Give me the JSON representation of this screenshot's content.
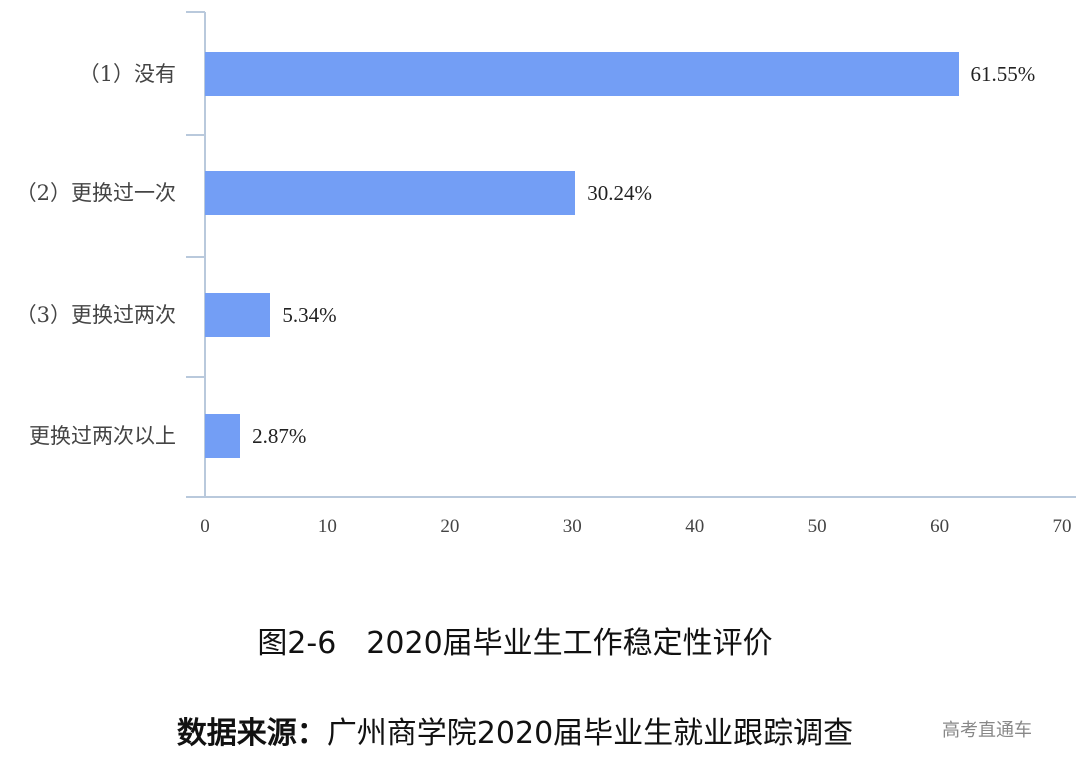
{
  "chart_data": {
    "type": "bar",
    "orientation": "horizontal",
    "title": "图2-6　2020届毕业生工作稳定性评价",
    "source": "数据来源：广州商学院2020届毕业生就业跟踪调查",
    "categories": [
      "（1）没有",
      "（2）更换过一次",
      "（3）更换过两次",
      "更换过两次以上"
    ],
    "values": [
      61.55,
      30.24,
      5.34,
      2.87
    ],
    "value_labels": [
      "61.55%",
      "30.24%",
      "5.34%",
      "2.87%"
    ],
    "xlabel": "",
    "ylabel": "",
    "xlim": [
      0,
      70
    ],
    "x_ticks": [
      "0",
      "10",
      "20",
      "30",
      "40",
      "50",
      "60",
      "70"
    ],
    "grid": false,
    "legend": null,
    "bar_color": "#739EF5"
  },
  "caption": {
    "figure_title": "图2-6　2020届毕业生工作稳定性评价",
    "source_key": "数据来源：",
    "source_value": "广州商学院2020届毕业生就业跟踪调查"
  },
  "watermark": "高考直通车"
}
